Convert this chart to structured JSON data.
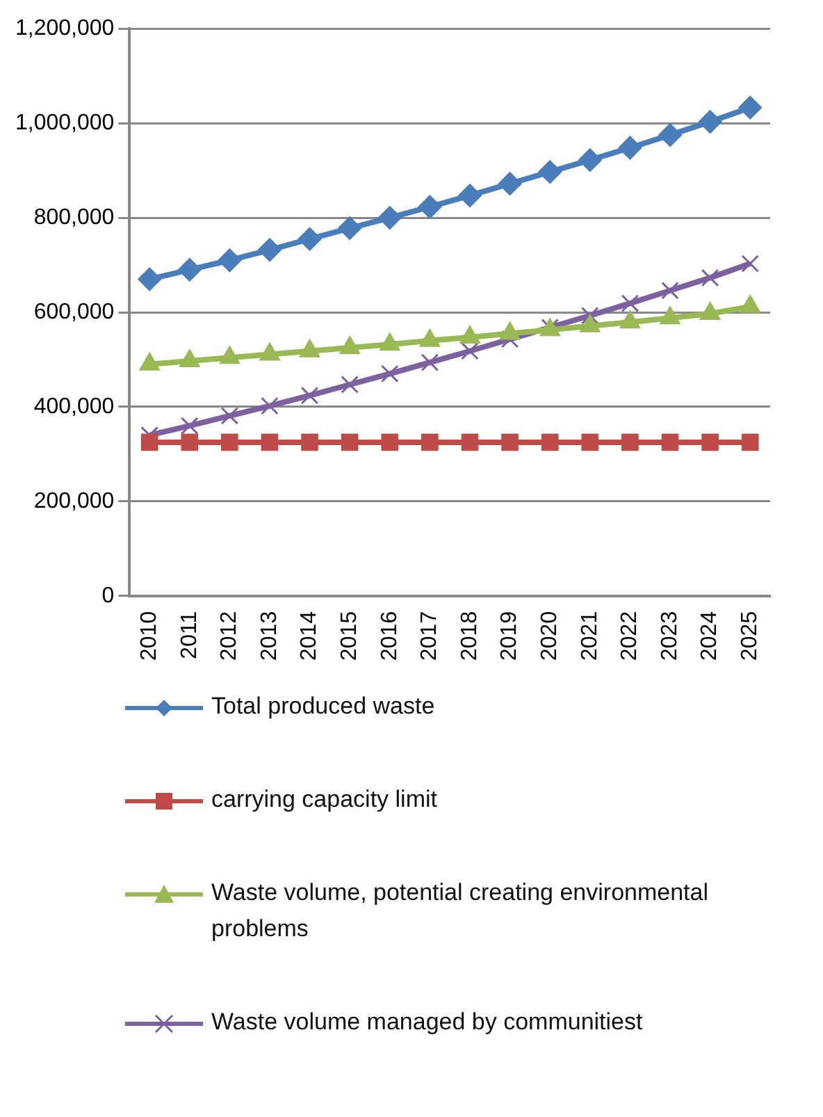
{
  "chart_data": {
    "type": "line",
    "categories": [
      "2010",
      "2011",
      "2012",
      "2013",
      "2014",
      "2015",
      "2016",
      "2017",
      "2018",
      "2019",
      "2020",
      "2021",
      "2022",
      "2023",
      "2024",
      "2025"
    ],
    "series": [
      {
        "name": "Total produced waste",
        "color": "#4a7ebb",
        "marker": "diamond",
        "values": [
          670000,
          690000,
          710000,
          732000,
          755000,
          778000,
          800000,
          823000,
          847000,
          872000,
          897000,
          922000,
          948000,
          975000,
          1003000,
          1033000
        ]
      },
      {
        "name": "carrying capacity limit",
        "color": "#be4b48",
        "marker": "square",
        "values": [
          325000,
          325000,
          325000,
          325000,
          325000,
          325000,
          325000,
          325000,
          325000,
          325000,
          325000,
          325000,
          325000,
          325000,
          325000,
          325000
        ]
      },
      {
        "name": "Waste volume, potential creating environmental problems",
        "color": "#98b954",
        "marker": "triangle",
        "values": [
          490000,
          497000,
          504000,
          511000,
          518000,
          525000,
          532000,
          540000,
          547000,
          555000,
          563000,
          571000,
          579000,
          588000,
          597000,
          612000
        ]
      },
      {
        "name": "Waste volume managed by communitiest",
        "color": "#7d60a0",
        "marker": "cross",
        "values": [
          340000,
          360000,
          381000,
          402000,
          424000,
          447000,
          470000,
          494000,
          518000,
          543000,
          568000,
          593000,
          619000,
          646000,
          673000,
          703000
        ]
      }
    ],
    "ylim": [
      0,
      1200000
    ],
    "yticks": [
      0,
      {
        "value": 200000,
        "label": "200,000"
      },
      {
        "value": 400000,
        "label": "400,000"
      },
      {
        "value": 600000,
        "label": "600,000"
      },
      {
        "value": 800000,
        "label": "800,000"
      },
      {
        "value": 1000000,
        "label": "1,000,000"
      },
      {
        "value": 1200000,
        "label": "1,200,000"
      }
    ],
    "grid": "y",
    "legend": "bottom",
    "line_style": "solid"
  }
}
